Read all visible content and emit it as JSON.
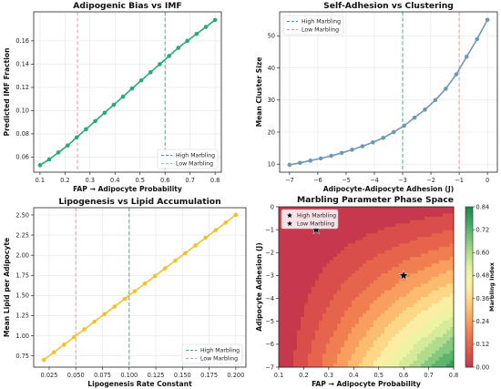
{
  "chart_data": [
    {
      "type": "line",
      "title": "Adipogenic Bias vs IMF",
      "xlabel": "FAP → Adipocyte Probability",
      "ylabel": "Predicted IMF Fraction",
      "xlim": [
        0.075,
        0.825
      ],
      "ylim": [
        0.047,
        0.185
      ],
      "xticks": [
        "0.1",
        "0.2",
        "0.3",
        "0.4",
        "0.5",
        "0.6",
        "0.7",
        "0.8"
      ],
      "yticks": [
        "0.06",
        "0.08",
        "0.10",
        "0.12",
        "0.14",
        "0.16"
      ],
      "series": [
        {
          "color": "#2aa876",
          "x": [
            0.1,
            0.137,
            0.174,
            0.211,
            0.247,
            0.284,
            0.321,
            0.358,
            0.395,
            0.432,
            0.468,
            0.505,
            0.542,
            0.579,
            0.616,
            0.653,
            0.689,
            0.726,
            0.763,
            0.8
          ],
          "y": [
            0.053,
            0.058,
            0.064,
            0.07,
            0.077,
            0.084,
            0.091,
            0.098,
            0.105,
            0.112,
            0.119,
            0.126,
            0.133,
            0.14,
            0.147,
            0.154,
            0.16,
            0.166,
            0.172,
            0.178
          ]
        }
      ],
      "vlines": [
        {
          "x": 0.6,
          "color": "#2aa876",
          "label": "High Marbling"
        },
        {
          "x": 0.25,
          "color": "#ee8f8f",
          "label": "Low Marbling"
        }
      ],
      "legend": "lower-right",
      "grid": true
    },
    {
      "type": "line",
      "title": "Self-Adhesion vs Clustering",
      "xlabel": "Adipocyte-Adipocyte Adhesion (J)",
      "ylabel": "Mean Cluster Size",
      "xlim": [
        -7.35,
        0.35
      ],
      "ylim": [
        7.5,
        57.5
      ],
      "xticks": [
        "−7",
        "−6",
        "−5",
        "−4",
        "−3",
        "−2",
        "−1",
        "0"
      ],
      "yticks": [
        "10",
        "20",
        "30",
        "40",
        "50"
      ],
      "series": [
        {
          "color": "#6f98b3",
          "x": [
            -7,
            -6.632,
            -6.263,
            -5.895,
            -5.526,
            -5.158,
            -4.789,
            -4.421,
            -4.053,
            -3.684,
            -3.316,
            -2.947,
            -2.579,
            -2.211,
            -1.842,
            -1.474,
            -1.105,
            -0.737,
            -0.368,
            0
          ],
          "y": [
            9.8,
            10.4,
            11.1,
            11.8,
            12.6,
            13.5,
            14.5,
            15.6,
            16.8,
            18.2,
            20.0,
            22.0,
            24.5,
            27.0,
            30.0,
            33.5,
            38.0,
            43.5,
            49.0,
            55.0
          ]
        }
      ],
      "vlines": [
        {
          "x": -3,
          "color": "#2aa876",
          "label": "High Marbling"
        },
        {
          "x": -1,
          "color": "#ee8f8f",
          "label": "Low Marbling"
        }
      ],
      "legend": "top-left",
      "grid": true
    },
    {
      "type": "line",
      "title": "Lipogenesis vs Lipid Accumulation",
      "xlabel": "Lipogenesis Rate Constant",
      "ylabel": "Mean Lipid per Adipocyte",
      "xlim": [
        0.0105,
        0.2095
      ],
      "ylim": [
        0.61,
        2.59
      ],
      "xticks": [
        "0.025",
        "0.050",
        "0.075",
        "0.100",
        "0.125",
        "0.150",
        "0.175",
        "0.200"
      ],
      "yticks": [
        "0.75",
        "1.00",
        "1.25",
        "1.50",
        "1.75",
        "2.00",
        "2.25",
        "2.50"
      ],
      "series": [
        {
          "color": "#f2c12e",
          "x": [
            0.02,
            0.0295,
            0.0389,
            0.0484,
            0.0579,
            0.0674,
            0.0768,
            0.0863,
            0.0958,
            0.1053,
            0.1147,
            0.1242,
            0.1337,
            0.1432,
            0.1526,
            0.1621,
            0.1716,
            0.1811,
            0.1905,
            0.2
          ],
          "y": [
            0.7,
            0.795,
            0.889,
            0.984,
            1.079,
            1.174,
            1.268,
            1.363,
            1.458,
            1.553,
            1.647,
            1.742,
            1.837,
            1.932,
            2.026,
            2.121,
            2.216,
            2.311,
            2.405,
            2.5
          ]
        }
      ],
      "vlines": [
        {
          "x": 0.1,
          "color": "#2aa876",
          "label": "High Marbling"
        },
        {
          "x": 0.05,
          "color": "#ee8f8f",
          "label": "Low Marbling"
        }
      ],
      "legend": "lower-right",
      "grid": true
    },
    {
      "type": "heatmap",
      "title": "Marbling Parameter Phase Space",
      "xlabel": "FAP → Adipocyte Probability",
      "ylabel": "Adipocyte Adhesion (J)",
      "xlim": [
        0.1,
        0.8
      ],
      "ylim": [
        -7,
        0
      ],
      "xticks": [
        "0.1",
        "0.2",
        "0.3",
        "0.4",
        "0.5",
        "0.6",
        "0.7",
        "0.8"
      ],
      "yticks": [
        "0",
        "−1",
        "−2",
        "−3",
        "−4",
        "−5",
        "−6",
        "−7"
      ],
      "colorbar": {
        "label": "Marbling Index",
        "range": [
          0,
          0.84
        ],
        "ticks": [
          "0.00",
          "0.12",
          "0.24",
          "0.36",
          "0.48",
          "0.60",
          "0.72",
          "0.84"
        ],
        "colors": [
          "#c8384d",
          "#e0554a",
          "#f0784f",
          "#f9a460",
          "#fcce7a",
          "#fbeea3",
          "#e8f5a3",
          "#b9e08f",
          "#7ec47c",
          "#42a862",
          "#1c8a49"
        ]
      },
      "points": [
        {
          "x": 0.6,
          "y": -3,
          "label": "High Marbling"
        },
        {
          "x": 0.25,
          "y": -1,
          "label": "Low Marbling"
        }
      ],
      "legend": "top-left"
    }
  ]
}
